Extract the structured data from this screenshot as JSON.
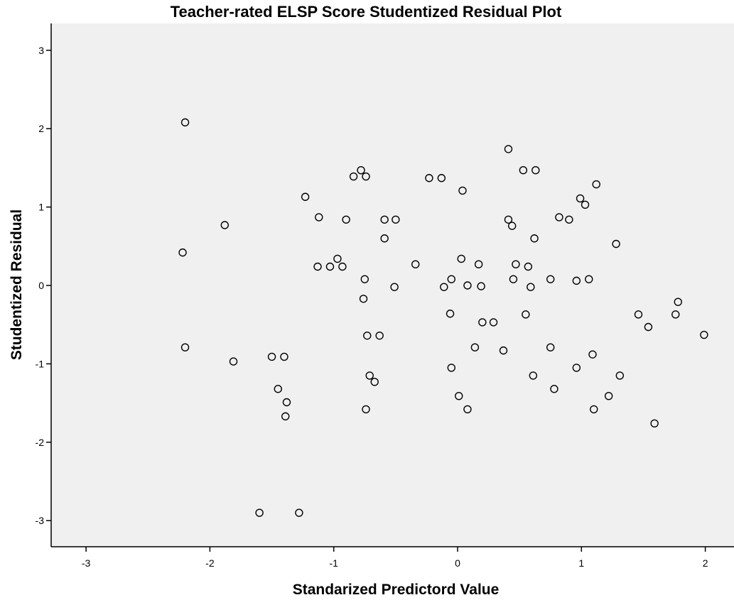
{
  "chart_data": {
    "type": "scatter",
    "title": "Teacher-rated ELSP Score Studentized Residual Plot",
    "xlabel": "Standarized Predictord Value",
    "ylabel": "Studentized Residual",
    "xlim": [
      -3.3,
      2.2
    ],
    "ylim": [
      -3.33,
      3.33
    ],
    "xticks": [
      -3,
      -2,
      -1,
      0,
      1,
      2
    ],
    "yticks": [
      -3,
      -2,
      -1,
      0,
      1,
      2,
      3
    ],
    "grid": false,
    "marker": "open-circle",
    "colors": {
      "plot_background": "#f0f0f0",
      "marker_stroke": "#000000",
      "axis": "#000000"
    },
    "points": [
      {
        "x": -2.2,
        "y": 2.08
      },
      {
        "x": -2.22,
        "y": 0.42
      },
      {
        "x": -2.2,
        "y": -0.79
      },
      {
        "x": -1.88,
        "y": 0.77
      },
      {
        "x": -1.81,
        "y": -0.97
      },
      {
        "x": -1.6,
        "y": -2.9
      },
      {
        "x": -1.5,
        "y": -0.91
      },
      {
        "x": -1.45,
        "y": -1.32
      },
      {
        "x": -1.4,
        "y": -0.91
      },
      {
        "x": -1.38,
        "y": -1.49
      },
      {
        "x": -1.39,
        "y": -1.67
      },
      {
        "x": -1.28,
        "y": -2.9
      },
      {
        "x": -1.23,
        "y": 1.13
      },
      {
        "x": -1.12,
        "y": 0.87
      },
      {
        "x": -1.13,
        "y": 0.24
      },
      {
        "x": -1.03,
        "y": 0.24
      },
      {
        "x": -0.97,
        "y": 0.34
      },
      {
        "x": -0.93,
        "y": 0.24
      },
      {
        "x": -0.9,
        "y": 0.84
      },
      {
        "x": -0.84,
        "y": 1.39
      },
      {
        "x": -0.78,
        "y": 1.47
      },
      {
        "x": -0.74,
        "y": 1.39
      },
      {
        "x": -0.75,
        "y": 0.08
      },
      {
        "x": -0.76,
        "y": -0.17
      },
      {
        "x": -0.73,
        "y": -0.64
      },
      {
        "x": -0.63,
        "y": -0.64
      },
      {
        "x": -0.71,
        "y": -1.15
      },
      {
        "x": -0.67,
        "y": -1.23
      },
      {
        "x": -0.74,
        "y": -1.58
      },
      {
        "x": -0.59,
        "y": 0.84
      },
      {
        "x": -0.59,
        "y": 0.6
      },
      {
        "x": -0.5,
        "y": 0.84
      },
      {
        "x": -0.51,
        "y": -0.02
      },
      {
        "x": -0.34,
        "y": 0.27
      },
      {
        "x": -0.23,
        "y": 1.37
      },
      {
        "x": -0.13,
        "y": 1.37
      },
      {
        "x": -0.11,
        "y": -0.02
      },
      {
        "x": -0.05,
        "y": 0.08
      },
      {
        "x": -0.06,
        "y": -0.36
      },
      {
        "x": -0.05,
        "y": -1.05
      },
      {
        "x": 0.01,
        "y": -1.41
      },
      {
        "x": 0.03,
        "y": 0.34
      },
      {
        "x": 0.04,
        "y": 1.21
      },
      {
        "x": 0.08,
        "y": 0.0
      },
      {
        "x": 0.08,
        "y": -1.58
      },
      {
        "x": 0.14,
        "y": -0.79
      },
      {
        "x": 0.17,
        "y": 0.27
      },
      {
        "x": 0.19,
        "y": -0.01
      },
      {
        "x": 0.2,
        "y": -0.47
      },
      {
        "x": 0.29,
        "y": -0.47
      },
      {
        "x": 0.37,
        "y": -0.83
      },
      {
        "x": 0.41,
        "y": 1.74
      },
      {
        "x": 0.41,
        "y": 0.84
      },
      {
        "x": 0.44,
        "y": 0.76
      },
      {
        "x": 0.45,
        "y": 0.08
      },
      {
        "x": 0.47,
        "y": 0.27
      },
      {
        "x": 0.53,
        "y": 1.47
      },
      {
        "x": 0.55,
        "y": -0.37
      },
      {
        "x": 0.57,
        "y": 0.24
      },
      {
        "x": 0.59,
        "y": -0.02
      },
      {
        "x": 0.61,
        "y": -1.15
      },
      {
        "x": 0.62,
        "y": 0.6
      },
      {
        "x": 0.63,
        "y": 1.47
      },
      {
        "x": 0.75,
        "y": 0.08
      },
      {
        "x": 0.75,
        "y": -0.79
      },
      {
        "x": 0.78,
        "y": -1.32
      },
      {
        "x": 0.82,
        "y": 0.87
      },
      {
        "x": 0.9,
        "y": 0.84
      },
      {
        "x": 0.96,
        "y": 0.06
      },
      {
        "x": 0.96,
        "y": -1.05
      },
      {
        "x": 0.99,
        "y": 1.11
      },
      {
        "x": 1.03,
        "y": 1.03
      },
      {
        "x": 1.06,
        "y": 0.08
      },
      {
        "x": 1.09,
        "y": -0.88
      },
      {
        "x": 1.1,
        "y": -1.58
      },
      {
        "x": 1.12,
        "y": 1.29
      },
      {
        "x": 1.22,
        "y": -1.41
      },
      {
        "x": 1.28,
        "y": 0.53
      },
      {
        "x": 1.31,
        "y": -1.15
      },
      {
        "x": 1.46,
        "y": -0.37
      },
      {
        "x": 1.54,
        "y": -0.53
      },
      {
        "x": 1.59,
        "y": -1.76
      },
      {
        "x": 1.76,
        "y": -0.37
      },
      {
        "x": 1.78,
        "y": -0.21
      },
      {
        "x": 1.99,
        "y": -0.63
      }
    ]
  }
}
